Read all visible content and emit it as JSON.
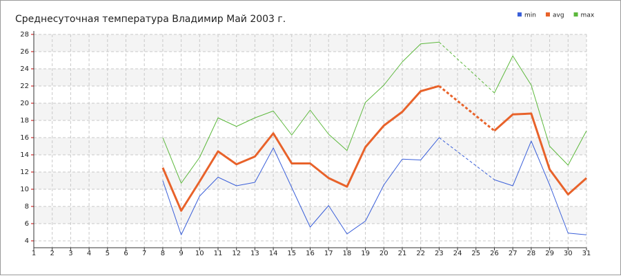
{
  "chart_data": {
    "type": "line",
    "title": "Среднесуточная температура Владимир  Май 2003 г.",
    "x": [
      1,
      2,
      3,
      4,
      5,
      6,
      7,
      8,
      9,
      10,
      11,
      12,
      13,
      14,
      15,
      16,
      17,
      18,
      19,
      20,
      21,
      22,
      23,
      24,
      25,
      26,
      27,
      28,
      29,
      30,
      31
    ],
    "xlim": [
      1,
      31
    ],
    "xticks": [
      1,
      2,
      3,
      4,
      5,
      6,
      7,
      8,
      9,
      10,
      11,
      12,
      13,
      14,
      15,
      16,
      17,
      18,
      19,
      20,
      21,
      22,
      23,
      24,
      25,
      26,
      27,
      28,
      29,
      30,
      31
    ],
    "ylim": [
      3.2,
      28
    ],
    "yticks": [
      4,
      6,
      8,
      10,
      12,
      14,
      16,
      18,
      20,
      22,
      24,
      26,
      28
    ],
    "grid": true,
    "legend": "top-right",
    "series": [
      {
        "name": "min",
        "color": "#3a5fd9",
        "values": [
          null,
          null,
          null,
          null,
          null,
          null,
          null,
          11.0,
          4.7,
          9.2,
          11.4,
          10.4,
          10.8,
          14.8,
          10.2,
          5.6,
          8.1,
          4.8,
          6.3,
          10.5,
          13.5,
          13.4,
          16.0,
          null,
          null,
          11.1,
          10.4,
          15.6,
          10.5,
          4.9,
          4.7
        ]
      },
      {
        "name": "avg",
        "color": "#e8622a",
        "values": [
          null,
          null,
          null,
          null,
          null,
          null,
          null,
          12.5,
          7.5,
          10.9,
          14.4,
          12.9,
          13.8,
          16.5,
          13.0,
          13.0,
          11.3,
          10.3,
          14.9,
          17.4,
          19.0,
          21.4,
          22.0,
          null,
          null,
          16.8,
          18.7,
          18.8,
          12.3,
          9.4,
          11.3
        ]
      },
      {
        "name": "max",
        "color": "#5cb83c",
        "values": [
          null,
          null,
          null,
          null,
          null,
          null,
          null,
          16.0,
          10.7,
          13.7,
          18.3,
          17.3,
          18.3,
          19.1,
          16.3,
          19.2,
          16.4,
          14.5,
          20.1,
          22.1,
          24.8,
          26.9,
          27.1,
          null,
          null,
          21.2,
          25.5,
          22.1,
          15.0,
          12.8,
          16.8
        ]
      }
    ]
  }
}
